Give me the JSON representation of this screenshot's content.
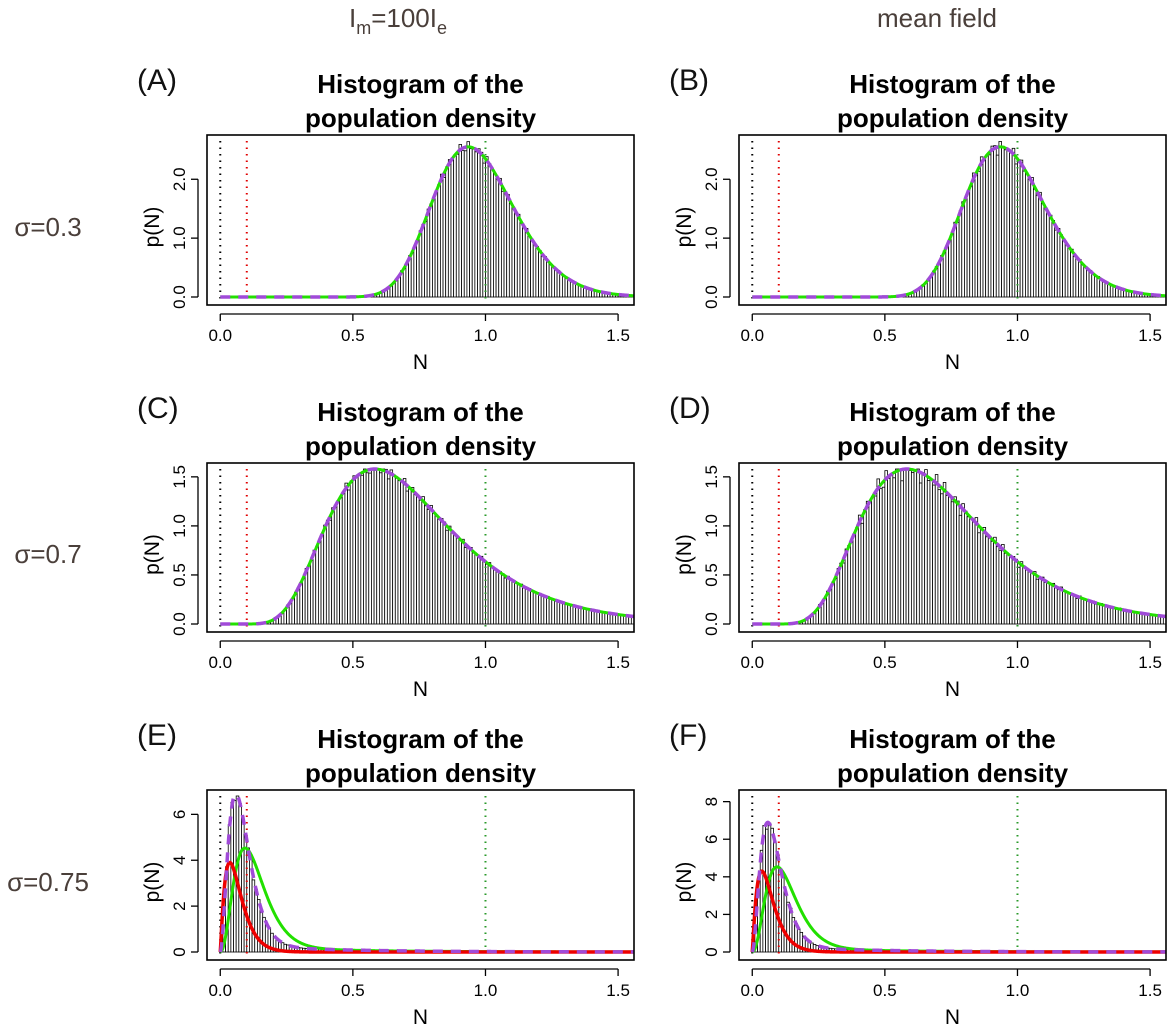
{
  "figure": {
    "column_titles": [
      {
        "main": "I",
        "sub1": "m",
        "mid": "=100I",
        "sub2": "e"
      },
      {
        "main": "mean field"
      }
    ],
    "row_labels": [
      "σ=0.3",
      "σ=0.7",
      "σ=0.75"
    ],
    "colors": {
      "bars": "#000000",
      "green_curve": "#22e000",
      "purple_dashed": "#a04ad8",
      "red_curve": "#ee0000",
      "vline_black": "#000000",
      "vline_red": "#e00000",
      "vline_green": "#2a9a2a"
    }
  },
  "chart_data": [
    {
      "id": "A",
      "letter": "(A)",
      "type": "bar",
      "title": [
        "Histogram of the",
        "population density"
      ],
      "xlabel": "N",
      "ylabel": "p(N)",
      "xlim": [
        -0.05,
        1.56
      ],
      "ylim": [
        0,
        2.65
      ],
      "xticks": [
        "0.0",
        "0.5",
        "1.0",
        "1.5"
      ],
      "yticks": [
        "0.0",
        "1.0",
        "2.0"
      ],
      "ytick_values": [
        0,
        1,
        2
      ],
      "vlines": [
        0,
        0.1,
        1.0
      ],
      "model": "lognormal",
      "mu": -0.04,
      "s": 0.165,
      "noise": 0.02,
      "extra_red": false
    },
    {
      "id": "B",
      "letter": "(B)",
      "type": "bar",
      "title": [
        "Histogram of the",
        "population density"
      ],
      "xlabel": "N",
      "ylabel": "p(N)",
      "xlim": [
        -0.05,
        1.56
      ],
      "ylim": [
        0,
        2.65
      ],
      "xticks": [
        "0.0",
        "0.5",
        "1.0",
        "1.5"
      ],
      "yticks": [
        "0.0",
        "1.0",
        "2.0"
      ],
      "ytick_values": [
        0,
        1,
        2
      ],
      "vlines": [
        0,
        0.1,
        1.0
      ],
      "model": "lognormal",
      "mu": -0.04,
      "s": 0.165,
      "noise": 0.025,
      "extra_red": false
    },
    {
      "id": "C",
      "letter": "(C)",
      "type": "bar",
      "title": [
        "Histogram of the",
        "population density"
      ],
      "xlabel": "N",
      "ylabel": "p(N)",
      "xlim": [
        -0.05,
        1.56
      ],
      "ylim": [
        0,
        1.58
      ],
      "xticks": [
        "0.0",
        "0.5",
        "1.0",
        "1.5"
      ],
      "yticks": [
        "0.0",
        "0.5",
        "1.0",
        "1.5"
      ],
      "ytick_values": [
        0,
        0.5,
        1.0,
        1.5
      ],
      "vlines": [
        0,
        0.1,
        1.0
      ],
      "model": "lognormal",
      "mu": -0.38,
      "s": 0.4,
      "noise": 0.02,
      "extra_red": false
    },
    {
      "id": "D",
      "letter": "(D)",
      "type": "bar",
      "title": [
        "Histogram of the",
        "population density"
      ],
      "xlabel": "N",
      "ylabel": "p(N)",
      "xlim": [
        -0.05,
        1.56
      ],
      "ylim": [
        0,
        1.58
      ],
      "xticks": [
        "0.0",
        "0.5",
        "1.0",
        "1.5"
      ],
      "yticks": [
        "0.0",
        "0.5",
        "1.0",
        "1.5"
      ],
      "ytick_values": [
        0,
        0.5,
        1.0,
        1.5
      ],
      "vlines": [
        0,
        0.1,
        1.0
      ],
      "model": "lognormal",
      "mu": -0.38,
      "s": 0.4,
      "noise": 0.035,
      "extra_red": false
    },
    {
      "id": "E",
      "letter": "(E)",
      "type": "bar",
      "title": [
        "Histogram of the",
        "population density"
      ],
      "xlabel": "N",
      "ylabel": "p(N)",
      "xlim": [
        -0.05,
        1.56
      ],
      "ylim": [
        0,
        6.8
      ],
      "xticks": [
        "0.0",
        "0.5",
        "1.0",
        "1.5"
      ],
      "yticks": [
        "0",
        "2",
        "4",
        "6"
      ],
      "ytick_values": [
        0,
        2,
        4,
        6
      ],
      "vlines": [
        0,
        0.1,
        1.0
      ],
      "model": "peaked",
      "peak": 6.6,
      "noise": 0.02,
      "extra_red": true
    },
    {
      "id": "F",
      "letter": "(F)",
      "type": "bar",
      "title": [
        "Histogram of the",
        "population density"
      ],
      "xlabel": "N",
      "ylabel": "p(N)",
      "xlim": [
        -0.05,
        1.56
      ],
      "ylim": [
        0,
        8.3
      ],
      "xticks": [
        "0.0",
        "0.5",
        "1.0",
        "1.5"
      ],
      "yticks": [
        "0",
        "2",
        "4",
        "6",
        "8"
      ],
      "ytick_values": [
        0,
        2,
        4,
        6,
        8
      ],
      "vlines": [
        0,
        0.1,
        1.0
      ],
      "model": "peaked",
      "peak": 6.6,
      "noise": 0.025,
      "extra_red": true
    }
  ]
}
